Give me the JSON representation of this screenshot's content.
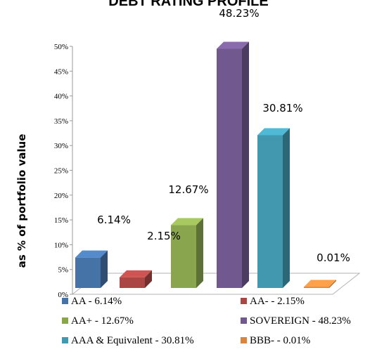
{
  "chart_data": {
    "type": "bar",
    "title": "DEBT RATING PROFILE",
    "xlabel": "",
    "ylabel": "as % of portfolio value",
    "ylim": [
      0,
      50
    ],
    "yticks": [
      "0%",
      "5%",
      "10%",
      "15%",
      "20%",
      "25%",
      "30%",
      "35%",
      "40%",
      "45%",
      "50%"
    ],
    "grid": false,
    "legend_position": "bottom",
    "categories": [
      "AA",
      "AA-",
      "AA+",
      "SOVEREIGN",
      "AAA & Equivalent",
      "BBB-"
    ],
    "values": [
      6.14,
      2.15,
      12.67,
      48.23,
      30.81,
      0.01
    ],
    "data_labels": [
      "6.14%",
      "2.15%",
      "12.67%",
      "48.23%",
      "30.81%",
      "0.01%"
    ],
    "colors": [
      "#4572a7",
      "#aa4643",
      "#89a54e",
      "#71588f",
      "#4198af",
      "#db843d"
    ],
    "legend": [
      "AA - 6.14%",
      "AA- - 2.15%",
      "AA+ - 12.67%",
      "SOVEREIGN - 48.23%",
      "AAA & Equivalent - 30.81%",
      "BBB- - 0.01%"
    ]
  }
}
